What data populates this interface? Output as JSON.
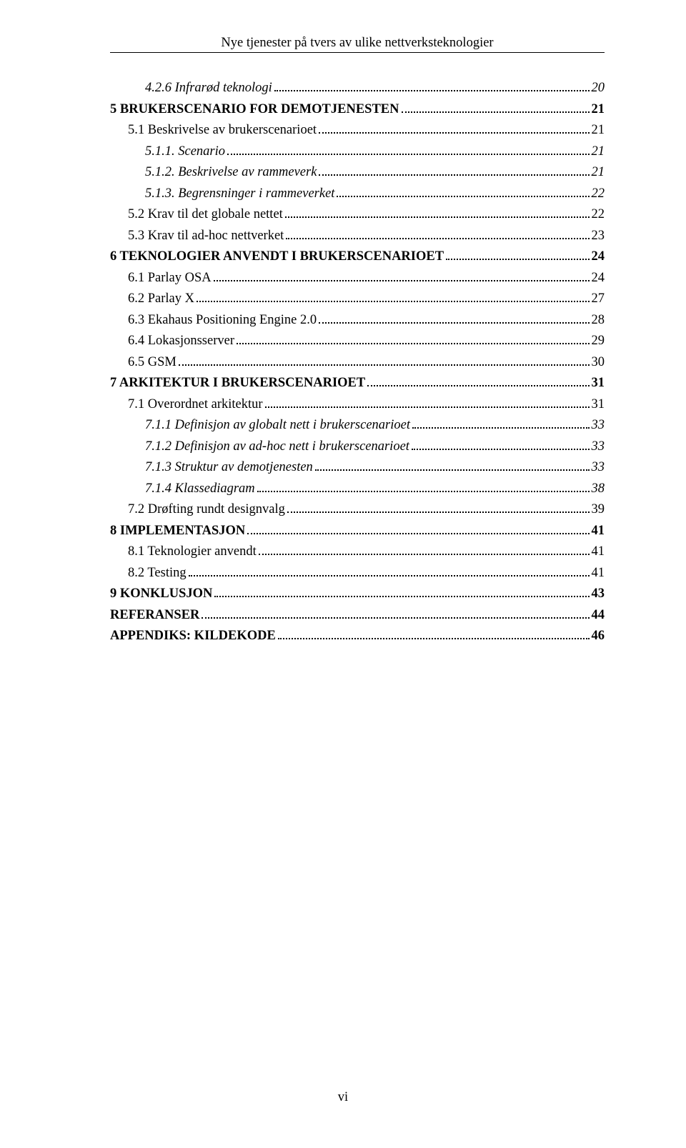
{
  "header": {
    "running_title": "Nye tjenester på tvers av ulike nettverksteknologier"
  },
  "footer": {
    "page_number": "vi"
  },
  "toc": [
    {
      "level": 3,
      "style": "italic",
      "label": "4.2.6 Infrarød teknologi",
      "page": "20"
    },
    {
      "level": 1,
      "style": "bold",
      "label": "5 BRUKERSCENARIO FOR DEMOTJENESTEN",
      "page": "21"
    },
    {
      "level": 2,
      "style": "normal",
      "label": "5.1 Beskrivelse av brukerscenarioet",
      "page": "21"
    },
    {
      "level": 3,
      "style": "italic",
      "label": "5.1.1. Scenario",
      "page": "21"
    },
    {
      "level": 3,
      "style": "italic",
      "label": "5.1.2. Beskrivelse av rammeverk",
      "page": "21"
    },
    {
      "level": 3,
      "style": "italic",
      "label": "5.1.3. Begrensninger i rammeverket",
      "page": "22"
    },
    {
      "level": 2,
      "style": "normal",
      "label": "5.2 Krav til det globale nettet",
      "page": "22"
    },
    {
      "level": 2,
      "style": "normal",
      "label": "5.3 Krav til ad-hoc nettverket",
      "page": "23"
    },
    {
      "level": 1,
      "style": "bold",
      "label": "6 TEKNOLOGIER ANVENDT I BRUKERSCENARIOET",
      "page": "24"
    },
    {
      "level": 2,
      "style": "normal",
      "label": "6.1 Parlay OSA",
      "page": "24"
    },
    {
      "level": 2,
      "style": "normal",
      "label": "6.2 Parlay X",
      "page": "27"
    },
    {
      "level": 2,
      "style": "normal",
      "label": "6.3 Ekahaus Positioning Engine 2.0",
      "page": "28"
    },
    {
      "level": 2,
      "style": "normal",
      "label": "6.4 Lokasjonsserver",
      "page": "29"
    },
    {
      "level": 2,
      "style": "normal",
      "label": "6.5 GSM",
      "page": "30"
    },
    {
      "level": 1,
      "style": "bold",
      "label": "7 ARKITEKTUR I BRUKERSCENARIOET",
      "page": "31"
    },
    {
      "level": 2,
      "style": "normal",
      "label": "7.1 Overordnet arkitektur",
      "page": "31"
    },
    {
      "level": 3,
      "style": "italic",
      "label": "7.1.1 Definisjon av globalt nett i brukerscenarioet",
      "page": "33"
    },
    {
      "level": 3,
      "style": "italic",
      "label": "7.1.2 Definisjon av ad-hoc nett i brukerscenarioet",
      "page": "33"
    },
    {
      "level": 3,
      "style": "italic",
      "label": "7.1.3 Struktur av demotjenesten",
      "page": "33"
    },
    {
      "level": 3,
      "style": "italic",
      "label": "7.1.4 Klassediagram",
      "page": "38"
    },
    {
      "level": 2,
      "style": "normal",
      "label": "7.2 Drøfting rundt designvalg",
      "page": "39"
    },
    {
      "level": 1,
      "style": "bold",
      "label": "8 IMPLEMENTASJON",
      "page": "41"
    },
    {
      "level": 2,
      "style": "normal",
      "label": "8.1 Teknologier anvendt",
      "page": "41"
    },
    {
      "level": 2,
      "style": "normal",
      "label": "8.2 Testing",
      "page": "41"
    },
    {
      "level": 1,
      "style": "bold",
      "label": "9 KONKLUSJON",
      "page": "43"
    },
    {
      "level": 1,
      "style": "bold",
      "label": "REFERANSER",
      "page": "44"
    },
    {
      "level": 1,
      "style": "bold",
      "label": "APPENDIKS: KILDEKODE",
      "page": "46"
    }
  ]
}
